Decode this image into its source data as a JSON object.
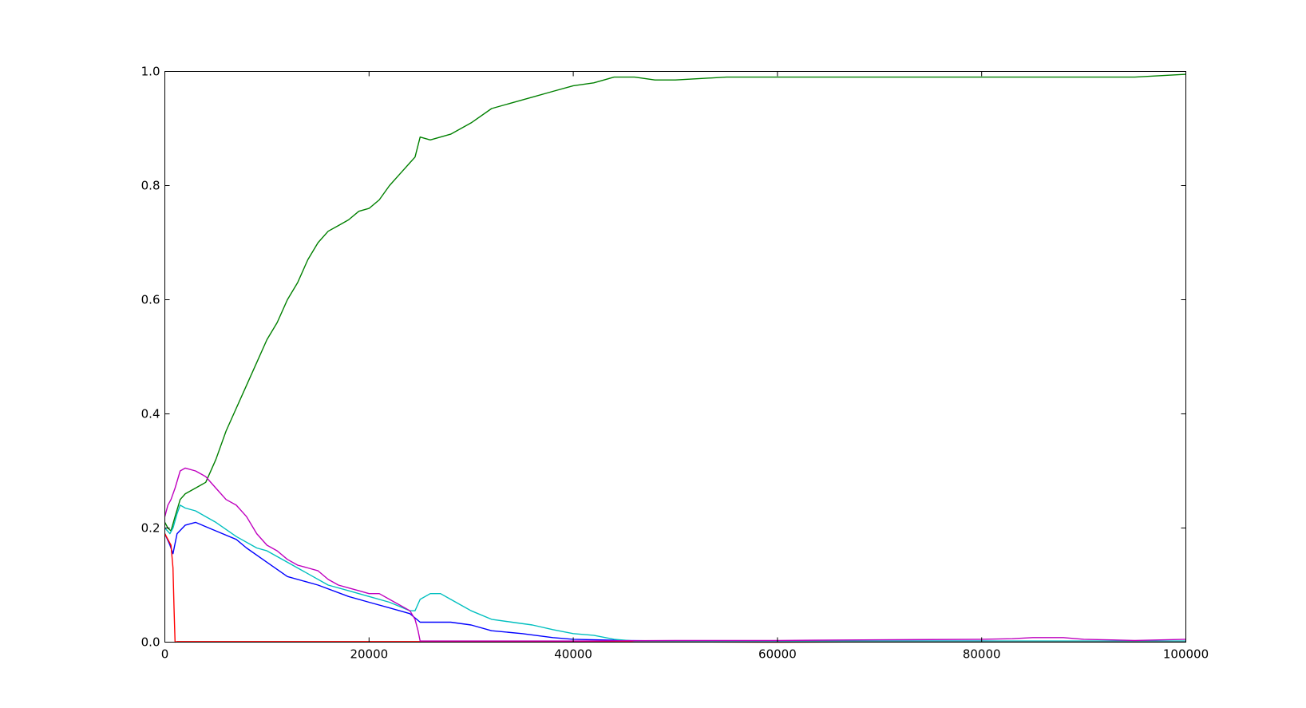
{
  "chart_data": {
    "type": "line",
    "title": "",
    "xlabel": "",
    "ylabel": "",
    "xlim": [
      0,
      100000
    ],
    "ylim": [
      0.0,
      1.0
    ],
    "grid": false,
    "legend": "none",
    "x_ticks": [
      {
        "value": 0,
        "label": "0"
      },
      {
        "value": 20000,
        "label": "20000"
      },
      {
        "value": 40000,
        "label": "40000"
      },
      {
        "value": 60000,
        "label": "60000"
      },
      {
        "value": 80000,
        "label": "80000"
      },
      {
        "value": 100000,
        "label": "100000"
      }
    ],
    "y_ticks": [
      {
        "value": 0.0,
        "label": "0.0"
      },
      {
        "value": 0.2,
        "label": "0.2"
      },
      {
        "value": 0.4,
        "label": "0.4"
      },
      {
        "value": 0.6,
        "label": "0.6"
      },
      {
        "value": 0.8,
        "label": "0.8"
      },
      {
        "value": 1.0,
        "label": "1.0"
      }
    ],
    "series": [
      {
        "color": "#0000ff",
        "x": [
          0,
          500,
          800,
          1200,
          2000,
          3000,
          5000,
          7000,
          8000,
          10000,
          12000,
          15000,
          18000,
          20000,
          22000,
          24000,
          25000,
          28000,
          30000,
          32000,
          35000,
          38000,
          40000,
          45000,
          50000,
          60000,
          70000,
          80000,
          90000,
          100000
        ],
        "y": [
          0.19,
          0.17,
          0.155,
          0.19,
          0.205,
          0.21,
          0.195,
          0.18,
          0.165,
          0.14,
          0.115,
          0.1,
          0.08,
          0.07,
          0.06,
          0.05,
          0.035,
          0.035,
          0.03,
          0.02,
          0.015,
          0.008,
          0.005,
          0.003,
          0.002,
          0.002,
          0.002,
          0.002,
          0.001,
          0.001
        ]
      },
      {
        "color": "#008000",
        "x": [
          0,
          300,
          600,
          1000,
          1500,
          2000,
          3000,
          4000,
          5000,
          6000,
          7000,
          8000,
          9000,
          10000,
          11000,
          12000,
          13000,
          14000,
          15000,
          16000,
          17000,
          18000,
          19000,
          20000,
          21000,
          22000,
          23000,
          24000,
          24500,
          25000,
          26000,
          27000,
          28000,
          30000,
          32000,
          34000,
          36000,
          38000,
          40000,
          42000,
          44000,
          46000,
          48000,
          50000,
          55000,
          60000,
          65000,
          70000,
          75000,
          80000,
          85000,
          90000,
          95000,
          100000
        ],
        "y": [
          0.21,
          0.2,
          0.195,
          0.22,
          0.25,
          0.26,
          0.27,
          0.28,
          0.32,
          0.37,
          0.41,
          0.45,
          0.49,
          0.53,
          0.56,
          0.6,
          0.63,
          0.67,
          0.7,
          0.72,
          0.73,
          0.74,
          0.755,
          0.76,
          0.775,
          0.8,
          0.82,
          0.84,
          0.85,
          0.885,
          0.88,
          0.885,
          0.89,
          0.91,
          0.935,
          0.945,
          0.955,
          0.965,
          0.975,
          0.98,
          0.99,
          0.99,
          0.985,
          0.985,
          0.99,
          0.99,
          0.99,
          0.99,
          0.99,
          0.99,
          0.99,
          0.99,
          0.99,
          0.995
        ]
      },
      {
        "color": "#ff0000",
        "x": [
          0,
          300,
          600,
          800,
          900,
          1000,
          1200,
          5000,
          20000,
          40000,
          60000,
          80000,
          100000
        ],
        "y": [
          0.19,
          0.18,
          0.17,
          0.13,
          0.06,
          0.0,
          0.001,
          0.001,
          0.001,
          0.001,
          0.0,
          0.001,
          0.001
        ]
      },
      {
        "color": "#00bfbf",
        "x": [
          0,
          500,
          800,
          1200,
          1500,
          2000,
          3000,
          5000,
          7000,
          9000,
          10000,
          12000,
          14000,
          16000,
          18000,
          20000,
          22000,
          24000,
          24500,
          25000,
          26000,
          27000,
          28000,
          30000,
          32000,
          34000,
          36000,
          38000,
          40000,
          42000,
          44000,
          46000,
          50000,
          60000,
          70000,
          80000,
          90000,
          100000
        ],
        "y": [
          0.2,
          0.19,
          0.2,
          0.225,
          0.24,
          0.235,
          0.23,
          0.21,
          0.185,
          0.165,
          0.16,
          0.14,
          0.12,
          0.1,
          0.09,
          0.08,
          0.07,
          0.055,
          0.055,
          0.075,
          0.085,
          0.085,
          0.075,
          0.055,
          0.04,
          0.035,
          0.03,
          0.022,
          0.015,
          0.012,
          0.005,
          0.002,
          0.002,
          0.002,
          0.002,
          0.002,
          0.002,
          0.002
        ]
      },
      {
        "color": "#bf00bf",
        "x": [
          0,
          300,
          600,
          1000,
          1500,
          2000,
          3000,
          4000,
          5000,
          6000,
          7000,
          8000,
          9000,
          10000,
          11000,
          12000,
          13000,
          14000,
          15000,
          16000,
          17000,
          18000,
          19000,
          20000,
          21000,
          22000,
          23000,
          24000,
          24500,
          24800,
          25000,
          26000,
          30000,
          40000,
          50000,
          55000,
          60000,
          70000,
          80000,
          83000,
          85000,
          88000,
          90000,
          95000,
          100000
        ],
        "y": [
          0.22,
          0.24,
          0.25,
          0.27,
          0.3,
          0.305,
          0.3,
          0.29,
          0.27,
          0.25,
          0.24,
          0.22,
          0.19,
          0.17,
          0.16,
          0.145,
          0.135,
          0.13,
          0.125,
          0.11,
          0.1,
          0.095,
          0.09,
          0.085,
          0.085,
          0.075,
          0.065,
          0.055,
          0.04,
          0.02,
          0.002,
          0.002,
          0.002,
          0.002,
          0.003,
          0.003,
          0.003,
          0.004,
          0.005,
          0.006,
          0.008,
          0.008,
          0.005,
          0.003,
          0.005
        ]
      }
    ]
  }
}
